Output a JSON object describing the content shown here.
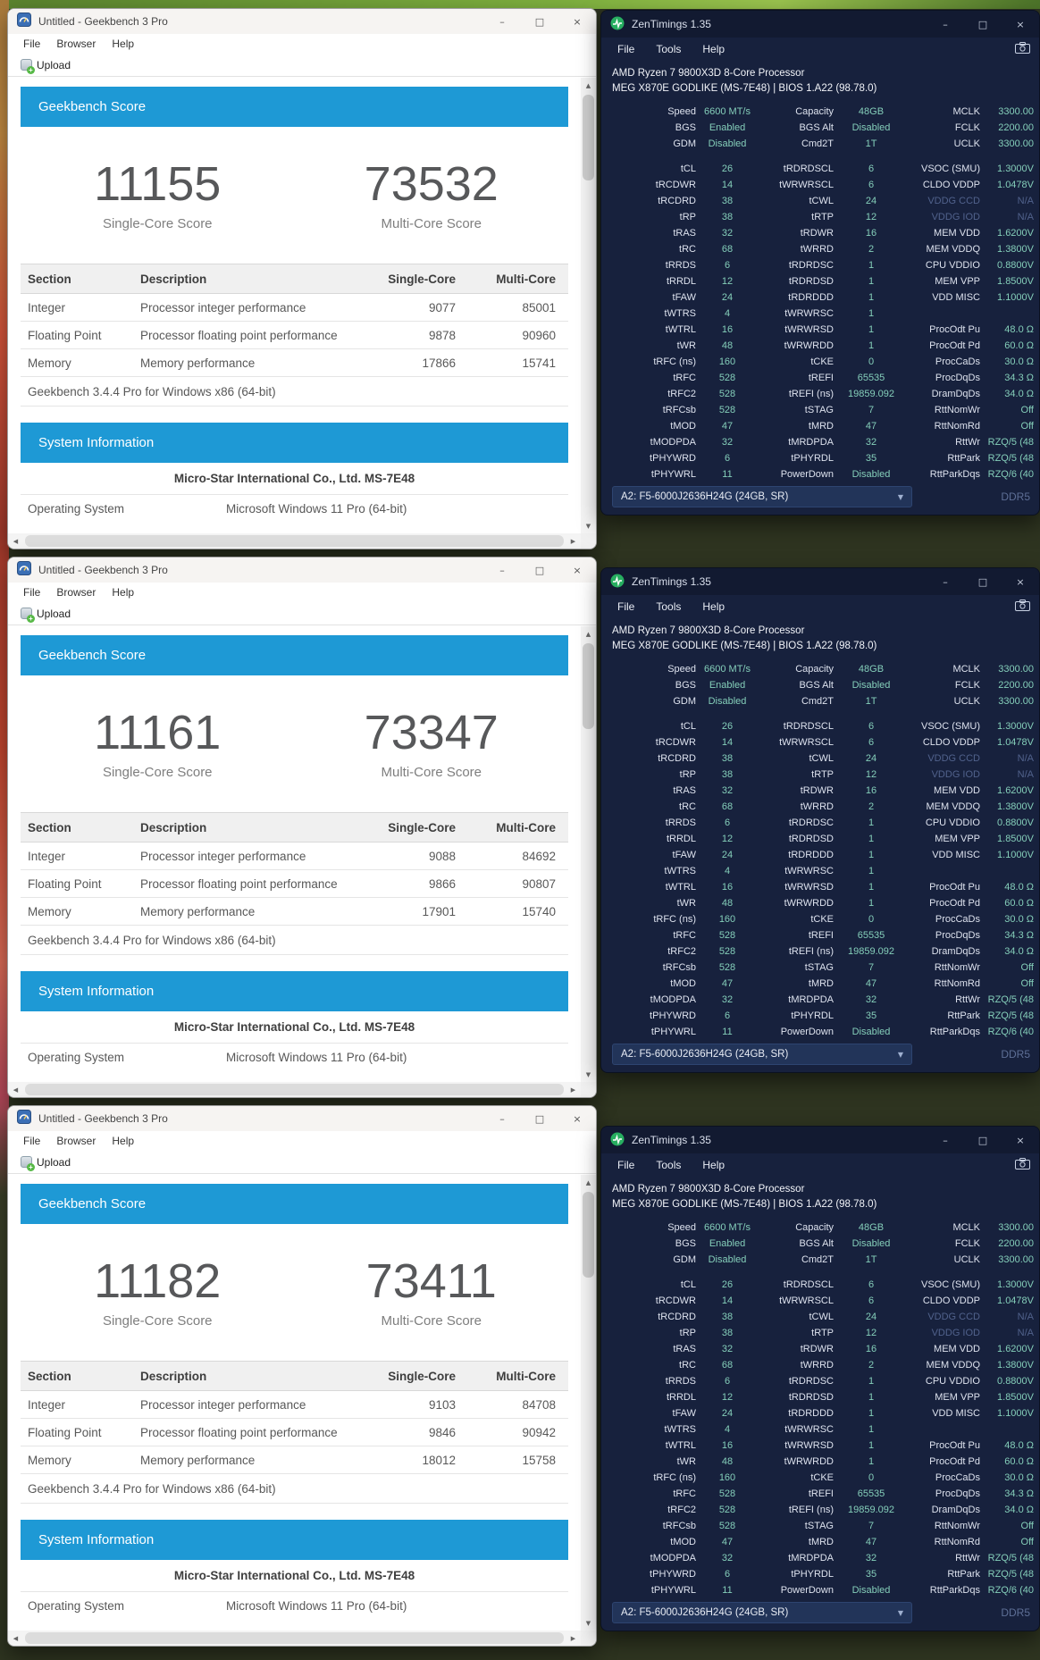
{
  "colors": {
    "geekbench_accent_blue": "#1e99d5",
    "zentimings_background": "#17213d",
    "zentimings_value_teal": "#85cfba",
    "zentimings_dim": "#51628c"
  },
  "icons": {
    "minimize": "–",
    "maximize": "□",
    "close": "×",
    "scroll_up": "▲",
    "scroll_down": "▼",
    "scroll_left": "◀",
    "scroll_right": "▶",
    "dropdown": "▼"
  },
  "geekbench_windows": [
    {
      "title": "Untitled - Geekbench 3 Pro",
      "menu": [
        "File",
        "Browser",
        "Help"
      ],
      "upload": "Upload",
      "banners": {
        "score": "Geekbench Score",
        "system": "System Information"
      },
      "scores": {
        "single": {
          "value": "11155",
          "label": "Single-Core Score"
        },
        "multi": {
          "value": "73532",
          "label": "Multi-Core Score"
        }
      },
      "table": {
        "headers": [
          "Section",
          "Description",
          "Single-Core",
          "Multi-Core"
        ],
        "rows": [
          [
            "Integer",
            "Processor integer performance",
            "9077",
            "85001"
          ],
          [
            "Floating Point",
            "Processor floating point performance",
            "9878",
            "90960"
          ],
          [
            "Memory",
            "Memory performance",
            "17866",
            "15741"
          ]
        ],
        "version_note": "Geekbench 3.4.4 Pro for Windows x86 (64-bit)"
      },
      "system": {
        "board": "Micro-Star International Co., Ltd. MS-7E48",
        "os_label": "Operating System",
        "os_value": "Microsoft Windows 11 Pro (64-bit)"
      }
    },
    {
      "title": "Untitled - Geekbench 3 Pro",
      "menu": [
        "File",
        "Browser",
        "Help"
      ],
      "upload": "Upload",
      "banners": {
        "score": "Geekbench Score",
        "system": "System Information"
      },
      "scores": {
        "single": {
          "value": "11161",
          "label": "Single-Core Score"
        },
        "multi": {
          "value": "73347",
          "label": "Multi-Core Score"
        }
      },
      "table": {
        "headers": [
          "Section",
          "Description",
          "Single-Core",
          "Multi-Core"
        ],
        "rows": [
          [
            "Integer",
            "Processor integer performance",
            "9088",
            "84692"
          ],
          [
            "Floating Point",
            "Processor floating point performance",
            "9866",
            "90807"
          ],
          [
            "Memory",
            "Memory performance",
            "17901",
            "15740"
          ]
        ],
        "version_note": "Geekbench 3.4.4 Pro for Windows x86 (64-bit)"
      },
      "system": {
        "board": "Micro-Star International Co., Ltd. MS-7E48",
        "os_label": "Operating System",
        "os_value": "Microsoft Windows 11 Pro (64-bit)"
      }
    },
    {
      "title": "Untitled - Geekbench 3 Pro",
      "menu": [
        "File",
        "Browser",
        "Help"
      ],
      "upload": "Upload",
      "banners": {
        "score": "Geekbench Score",
        "system": "System Information"
      },
      "scores": {
        "single": {
          "value": "11182",
          "label": "Single-Core Score"
        },
        "multi": {
          "value": "73411",
          "label": "Multi-Core Score"
        }
      },
      "table": {
        "headers": [
          "Section",
          "Description",
          "Single-Core",
          "Multi-Core"
        ],
        "rows": [
          [
            "Integer",
            "Processor integer performance",
            "9103",
            "84708"
          ],
          [
            "Floating Point",
            "Processor floating point performance",
            "9846",
            "90942"
          ],
          [
            "Memory",
            "Memory performance",
            "18012",
            "15758"
          ]
        ],
        "version_note": "Geekbench 3.4.4 Pro for Windows x86 (64-bit)"
      },
      "system": {
        "board": "Micro-Star International Co., Ltd. MS-7E48",
        "os_label": "Operating System",
        "os_value": "Microsoft Windows 11 Pro (64-bit)"
      }
    }
  ],
  "zentimings": {
    "title": "ZenTimings 1.35",
    "menu": [
      "File",
      "Tools",
      "Help"
    ],
    "cpu": "AMD Ryzen 7 9800X3D 8-Core Processor",
    "motherboard": "MEG X870E GODLIKE (MS-7E48) | BIOS 1.A22 (98.78.0)",
    "summary_rows": [
      [
        {
          "l": "Speed",
          "v": "6600 MT/s"
        },
        {
          "l": "Capacity",
          "v": "48GB"
        },
        {
          "l": "MCLK",
          "v": "3300.00"
        }
      ],
      [
        {
          "l": "BGS",
          "v": "Enabled"
        },
        {
          "l": "BGS Alt",
          "v": "Disabled"
        },
        {
          "l": "FCLK",
          "v": "2200.00"
        }
      ],
      [
        {
          "l": "GDM",
          "v": "Disabled"
        },
        {
          "l": "Cmd2T",
          "v": "1T"
        },
        {
          "l": "UCLK",
          "v": "3300.00"
        }
      ]
    ],
    "timing_rows": [
      [
        {
          "l": "tCL",
          "v": "26"
        },
        {
          "l": "tRDRDSCL",
          "v": "6"
        },
        {
          "l": "VSOC (SMU)",
          "v": "1.3000V"
        }
      ],
      [
        {
          "l": "tRCDWR",
          "v": "14"
        },
        {
          "l": "tWRWRSCL",
          "v": "6"
        },
        {
          "l": "CLDO VDDP",
          "v": "1.0478V"
        }
      ],
      [
        {
          "l": "tRCDRD",
          "v": "38"
        },
        {
          "l": "tCWL",
          "v": "24"
        },
        {
          "l": "VDDG CCD",
          "v": "N/A",
          "dim": true
        }
      ],
      [
        {
          "l": "tRP",
          "v": "38"
        },
        {
          "l": "tRTP",
          "v": "12"
        },
        {
          "l": "VDDG IOD",
          "v": "N/A",
          "dim": true
        }
      ],
      [
        {
          "l": "tRAS",
          "v": "32"
        },
        {
          "l": "tRDWR",
          "v": "16"
        },
        {
          "l": "MEM VDD",
          "v": "1.6200V"
        }
      ],
      [
        {
          "l": "tRC",
          "v": "68"
        },
        {
          "l": "tWRRD",
          "v": "2"
        },
        {
          "l": "MEM VDDQ",
          "v": "1.3800V"
        }
      ],
      [
        {
          "l": "tRRDS",
          "v": "6"
        },
        {
          "l": "tRDRDSC",
          "v": "1"
        },
        {
          "l": "CPU VDDIO",
          "v": "0.8800V"
        }
      ],
      [
        {
          "l": "tRRDL",
          "v": "12"
        },
        {
          "l": "tRDRDSD",
          "v": "1"
        },
        {
          "l": "MEM VPP",
          "v": "1.8500V"
        }
      ],
      [
        {
          "l": "tFAW",
          "v": "24"
        },
        {
          "l": "tRDRDDD",
          "v": "1"
        },
        {
          "l": "VDD MISC",
          "v": "1.1000V"
        }
      ],
      [
        {
          "l": "tWTRS",
          "v": "4"
        },
        {
          "l": "tWRWRSC",
          "v": "1"
        },
        {
          "l": "",
          "v": ""
        }
      ],
      [
        {
          "l": "tWTRL",
          "v": "16"
        },
        {
          "l": "tWRWRSD",
          "v": "1"
        },
        {
          "l": "ProcOdt Pu",
          "v": "48.0 Ω"
        }
      ],
      [
        {
          "l": "tWR",
          "v": "48"
        },
        {
          "l": "tWRWRDD",
          "v": "1"
        },
        {
          "l": "ProcOdt Pd",
          "v": "60.0 Ω"
        }
      ],
      [
        {
          "l": "tRFC (ns)",
          "v": "160"
        },
        {
          "l": "tCKE",
          "v": "0"
        },
        {
          "l": "ProcCaDs",
          "v": "30.0 Ω"
        }
      ],
      [
        {
          "l": "tRFC",
          "v": "528"
        },
        {
          "l": "tREFI",
          "v": "65535"
        },
        {
          "l": "ProcDqDs",
          "v": "34.3 Ω"
        }
      ],
      [
        {
          "l": "tRFC2",
          "v": "528"
        },
        {
          "l": "tREFI (ns)",
          "v": "19859.092"
        },
        {
          "l": "DramDqDs",
          "v": "34.0 Ω"
        }
      ],
      [
        {
          "l": "tRFCsb",
          "v": "528"
        },
        {
          "l": "tSTAG",
          "v": "7"
        },
        {
          "l": "RttNomWr",
          "v": "Off"
        }
      ],
      [
        {
          "l": "tMOD",
          "v": "47"
        },
        {
          "l": "tMRD",
          "v": "47"
        },
        {
          "l": "RttNomRd",
          "v": "Off"
        }
      ],
      [
        {
          "l": "tMODPDA",
          "v": "32"
        },
        {
          "l": "tMRDPDA",
          "v": "32"
        },
        {
          "l": "RttWr",
          "v": "RZQ/5 (48"
        }
      ],
      [
        {
          "l": "tPHYWRD",
          "v": "6"
        },
        {
          "l": "tPHYRDL",
          "v": "35"
        },
        {
          "l": "RttPark",
          "v": "RZQ/5 (48"
        }
      ],
      [
        {
          "l": "tPHYWRL",
          "v": "11"
        },
        {
          "l": "PowerDown",
          "v": "Disabled"
        },
        {
          "l": "RttParkDqs",
          "v": "RZQ/6 (40"
        }
      ]
    ],
    "footer": {
      "dimm": "A2: F5-6000J2636H24G (24GB, SR)",
      "memory_type": "DDR5"
    }
  }
}
